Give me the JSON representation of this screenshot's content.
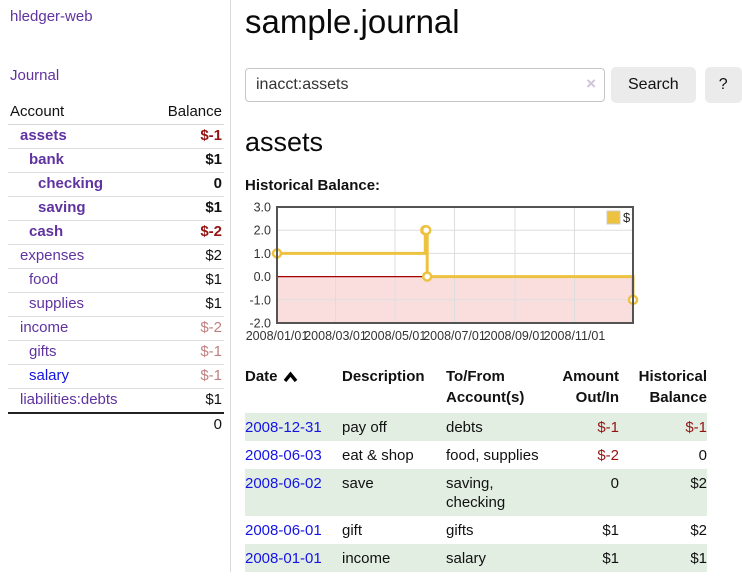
{
  "app": {
    "brand": "hledger-web",
    "nav_journal": "Journal"
  },
  "header": {
    "title": "sample.journal"
  },
  "search": {
    "value": "inacct:assets",
    "clear_icon": "×",
    "button": "Search",
    "help_button": "?"
  },
  "account_page": {
    "title": "assets",
    "chart_label": "Historical Balance:"
  },
  "sidebar": {
    "table": {
      "headers": {
        "account": "Account",
        "balance": "Balance"
      },
      "rows": [
        {
          "account": "assets",
          "indent": 0,
          "bold": true,
          "balance": "$-1",
          "balance_color": "neg",
          "link": "purple"
        },
        {
          "account": "bank",
          "indent": 1,
          "bold": true,
          "balance": "$1",
          "balance_color": "norm",
          "link": "purple"
        },
        {
          "account": "checking",
          "indent": 2,
          "bold": true,
          "balance": "0",
          "balance_color": "norm",
          "link": "purple"
        },
        {
          "account": "saving",
          "indent": 2,
          "bold": true,
          "balance": "$1",
          "balance_color": "norm",
          "link": "purple"
        },
        {
          "account": "cash",
          "indent": 1,
          "bold": true,
          "balance": "$-2",
          "balance_color": "neg",
          "link": "purple"
        },
        {
          "account": "expenses",
          "indent": 0,
          "bold": false,
          "balance": "$2",
          "balance_color": "norm",
          "link": "purple"
        },
        {
          "account": "food",
          "indent": 1,
          "bold": false,
          "balance": "$1",
          "balance_color": "norm",
          "link": "purple"
        },
        {
          "account": "supplies",
          "indent": 1,
          "bold": false,
          "balance": "$1",
          "balance_color": "norm",
          "link": "purple"
        },
        {
          "account": "income",
          "indent": 0,
          "bold": false,
          "balance": "$-2",
          "balance_color": "negdim",
          "link": "purple"
        },
        {
          "account": "gifts",
          "indent": 1,
          "bold": false,
          "balance": "$-1",
          "balance_color": "negdim",
          "link": "purple"
        },
        {
          "account": "salary",
          "indent": 1,
          "bold": false,
          "balance": "$-1",
          "balance_color": "negdim",
          "link": "blue"
        },
        {
          "account": "liabilities:debts",
          "indent": 0,
          "bold": false,
          "balance": "$1",
          "balance_color": "norm",
          "link": "purple"
        }
      ],
      "total": "0"
    }
  },
  "chart_data": {
    "type": "line",
    "step": true,
    "series": [
      {
        "name": "$",
        "color": "#edc240",
        "points": [
          [
            "2008-01-01",
            1
          ],
          [
            "2008-06-01",
            2
          ],
          [
            "2008-06-02",
            2
          ],
          [
            "2008-06-03",
            0
          ],
          [
            "2008-12-31",
            -1
          ]
        ]
      }
    ],
    "xlim": [
      "2008-01-01",
      "2008-12-31"
    ],
    "ylim": [
      -2,
      3
    ],
    "x_ticks": [
      "2008/01/01",
      "2008/03/01",
      "2008/05/01",
      "2008/07/01",
      "2008/09/01",
      "2008/11/01"
    ],
    "y_ticks": [
      "3.0",
      "2.0",
      "1.0",
      "0.0",
      "-1.0",
      "-2.0"
    ],
    "legend": "$",
    "legend_position": "top-right",
    "grid": true,
    "negative_region_color": "#fadede",
    "zero_line_color": "#a40000",
    "border_color": "#545454",
    "grid_color": "#dddddd"
  },
  "transactions": {
    "headers": [
      {
        "lines": [
          "Date"
        ],
        "align": "left",
        "sort_icon": "caret-up"
      },
      {
        "lines": [
          "Description"
        ],
        "align": "left"
      },
      {
        "lines": [
          "To/From",
          "Account(s)"
        ],
        "align": "left"
      },
      {
        "lines": [
          "Amount",
          "Out/In"
        ],
        "align": "right"
      },
      {
        "lines": [
          "Historical",
          "Balance"
        ],
        "align": "right"
      }
    ],
    "rows": [
      {
        "date": "2008-12-31",
        "description": "pay off",
        "accounts": [
          "debts"
        ],
        "amount": "$-1",
        "amount_negative": true,
        "balance": "$-1",
        "balance_negative": true
      },
      {
        "date": "2008-06-03",
        "description": "eat & shop",
        "accounts": [
          "food",
          "supplies"
        ],
        "amount": "$-2",
        "amount_negative": true,
        "balance": "0",
        "balance_negative": false
      },
      {
        "date": "2008-06-02",
        "description": "save",
        "accounts": [
          "saving",
          "checking"
        ],
        "amount": "0",
        "amount_negative": false,
        "balance": "$2",
        "balance_negative": false
      },
      {
        "date": "2008-06-01",
        "description": "gift",
        "accounts": [
          "gifts"
        ],
        "amount": "$1",
        "amount_negative": false,
        "balance": "$2",
        "balance_negative": false
      },
      {
        "date": "2008-01-01",
        "description": "income",
        "accounts": [
          "salary"
        ],
        "amount": "$1",
        "amount_negative": false,
        "balance": "$1",
        "balance_negative": false
      }
    ]
  },
  "colors": {
    "link_purple": "#6033a0",
    "link_blue": "#1313e0",
    "date_link_blue": "#1414e6",
    "negative": "#941414",
    "negative_dim": "#c08080",
    "row_green": "#e2eee2",
    "accent_gold": "#edc240",
    "button_gray": "#ebebeb"
  }
}
